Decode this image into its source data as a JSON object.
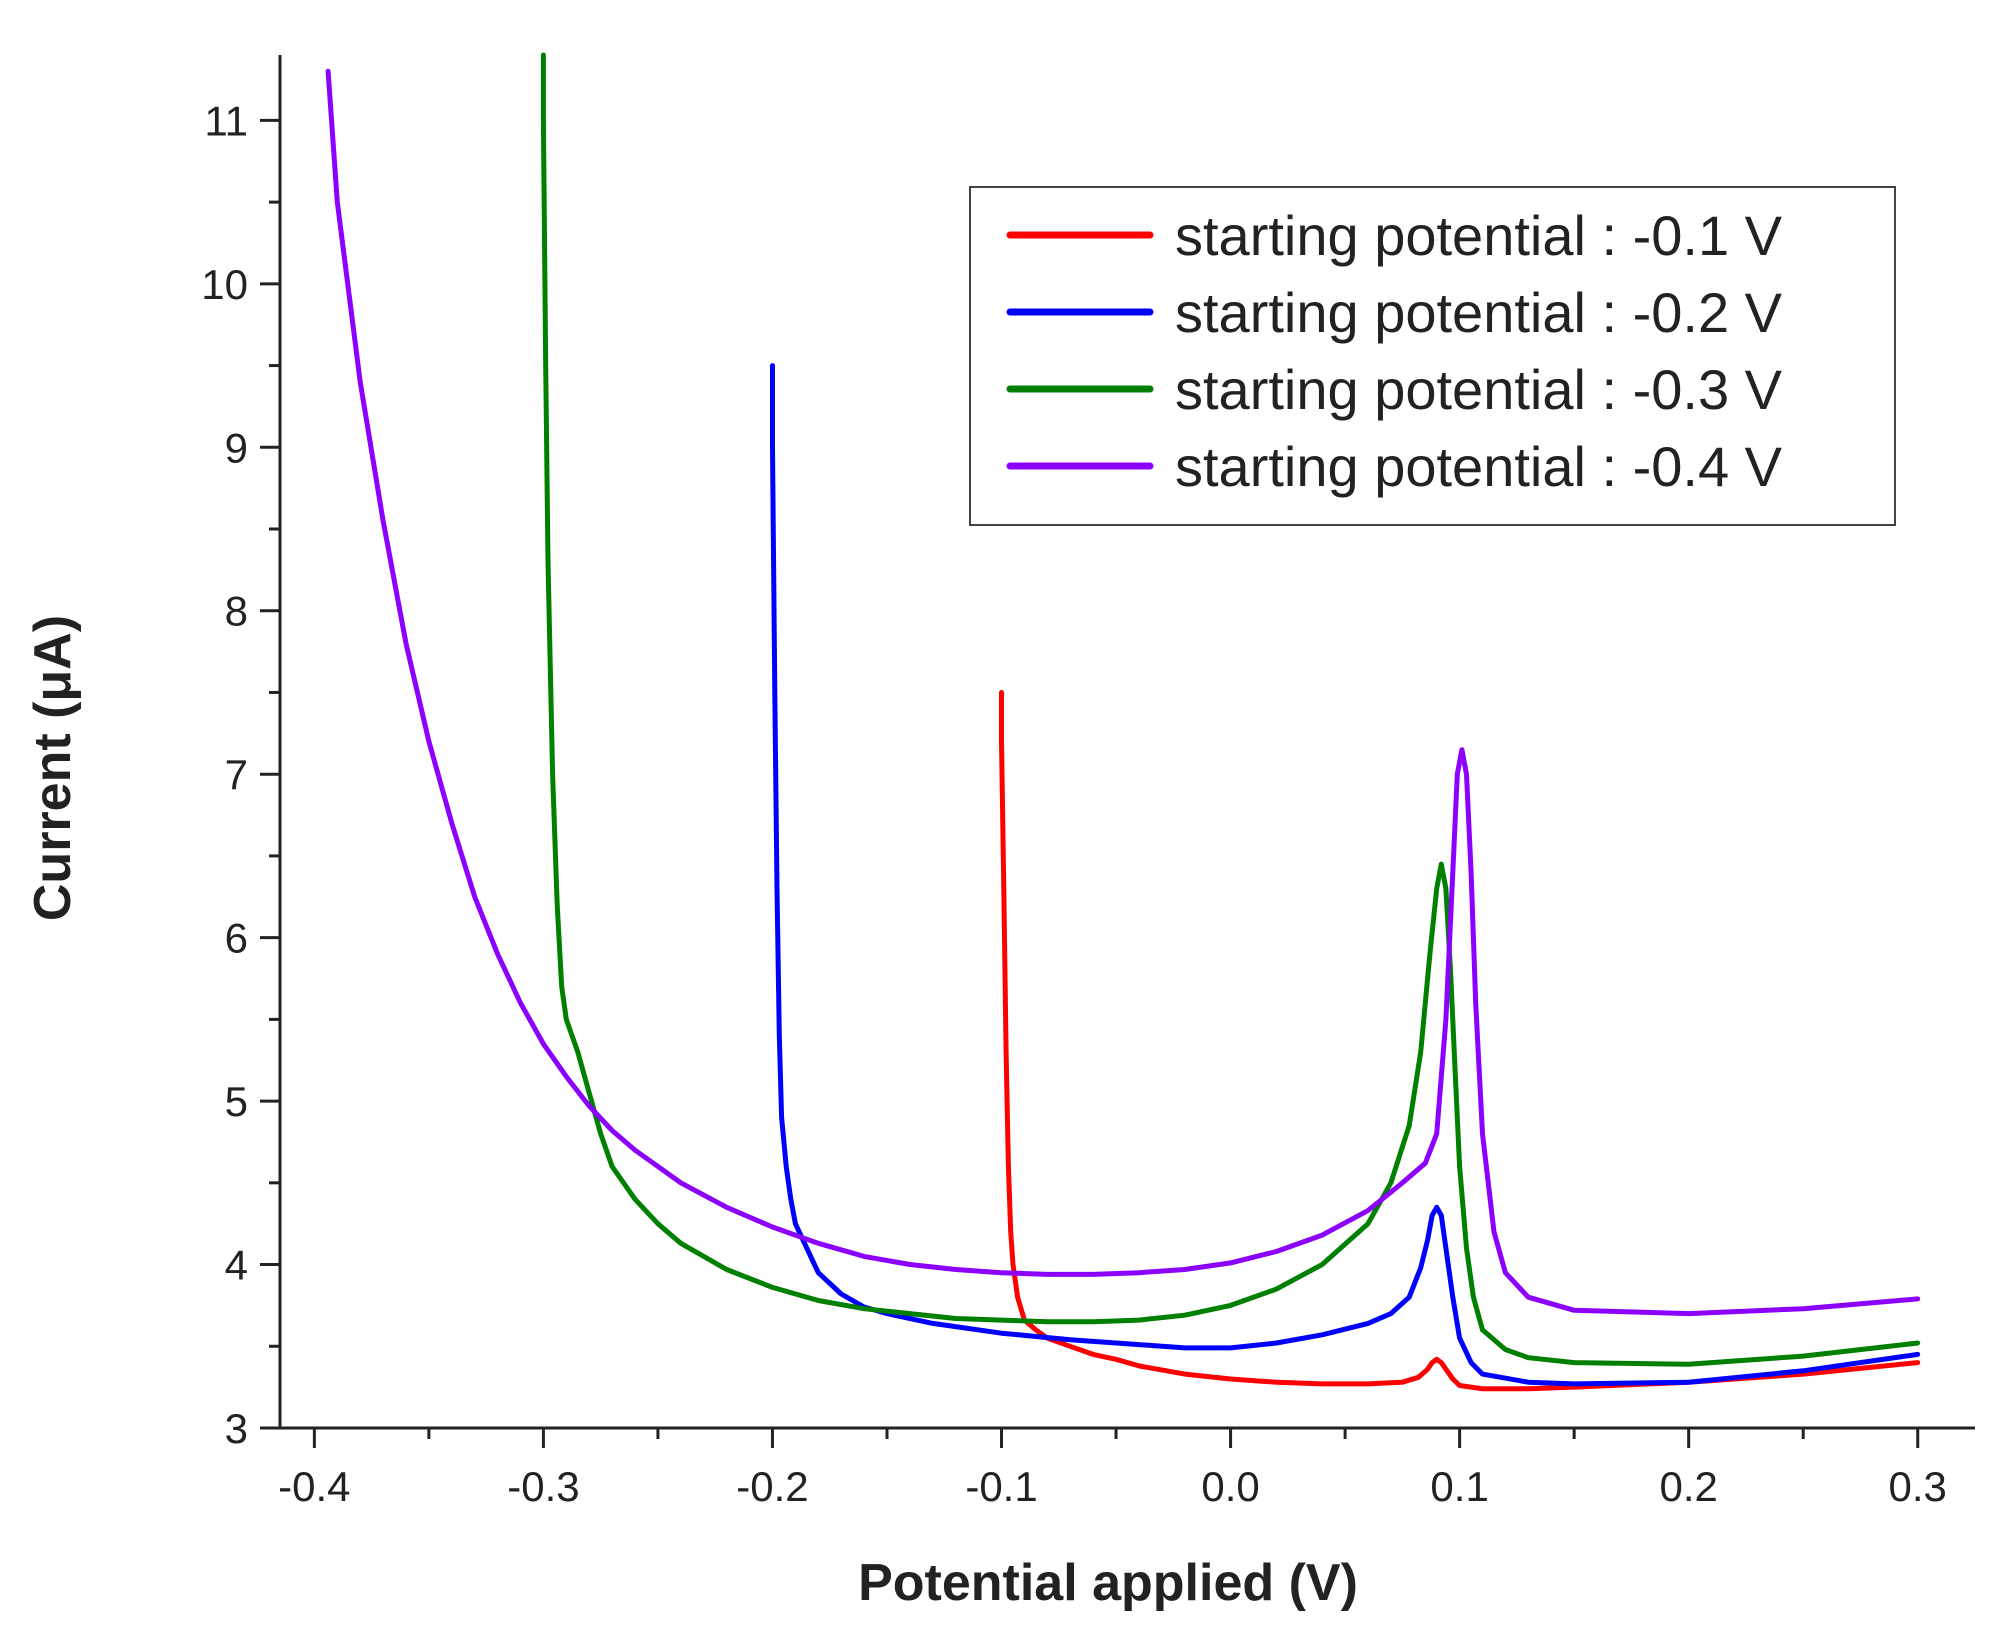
{
  "chart_data": {
    "type": "line",
    "title": "",
    "xlabel": "Potential applied (V)",
    "ylabel": "Current (μA)",
    "xlim": [
      -0.415,
      0.325
    ],
    "ylim": [
      3.0,
      11.4
    ],
    "xticks": [
      -0.4,
      -0.3,
      -0.2,
      -0.1,
      0.0,
      0.1,
      0.2,
      0.3
    ],
    "xtick_labels": [
      "-0.4",
      "-0.3",
      "-0.2",
      "-0.1",
      "0.0",
      "0.1",
      "0.2",
      "0.3"
    ],
    "yticks": [
      3,
      4,
      5,
      6,
      7,
      8,
      9,
      10,
      11
    ],
    "ytick_labels": [
      "3",
      "4",
      "5",
      "6",
      "7",
      "8",
      "9",
      "10",
      "11"
    ],
    "legend_position": "top-right",
    "series": [
      {
        "name": "starting potential : -0.1 V",
        "color": "#ff0000",
        "x": [
          -0.1,
          -0.1,
          -0.099,
          -0.098,
          -0.097,
          -0.096,
          -0.095,
          -0.093,
          -0.09,
          -0.085,
          -0.08,
          -0.07,
          -0.06,
          -0.05,
          -0.04,
          -0.02,
          0.0,
          0.02,
          0.04,
          0.06,
          0.075,
          0.082,
          0.086,
          0.088,
          0.09,
          0.092,
          0.094,
          0.097,
          0.1,
          0.105,
          0.11,
          0.13,
          0.15,
          0.2,
          0.25,
          0.3
        ],
        "y": [
          7.5,
          7.2,
          6.3,
          5.3,
          4.6,
          4.2,
          4.0,
          3.8,
          3.66,
          3.6,
          3.55,
          3.5,
          3.45,
          3.42,
          3.38,
          3.33,
          3.3,
          3.28,
          3.27,
          3.27,
          3.28,
          3.31,
          3.36,
          3.4,
          3.42,
          3.4,
          3.36,
          3.3,
          3.26,
          3.25,
          3.24,
          3.24,
          3.25,
          3.28,
          3.33,
          3.4
        ]
      },
      {
        "name": "starting potential : -0.2 V",
        "color": "#0000ff",
        "x": [
          -0.2,
          -0.2,
          -0.199,
          -0.198,
          -0.197,
          -0.196,
          -0.194,
          -0.192,
          -0.19,
          -0.185,
          -0.18,
          -0.17,
          -0.16,
          -0.15,
          -0.13,
          -0.1,
          -0.07,
          -0.05,
          -0.02,
          0.0,
          0.02,
          0.04,
          0.06,
          0.07,
          0.078,
          0.083,
          0.086,
          0.088,
          0.09,
          0.092,
          0.094,
          0.097,
          0.1,
          0.105,
          0.11,
          0.13,
          0.15,
          0.2,
          0.25,
          0.3
        ],
        "y": [
          9.5,
          9.0,
          7.5,
          6.3,
          5.4,
          4.9,
          4.6,
          4.4,
          4.25,
          4.1,
          3.95,
          3.82,
          3.74,
          3.7,
          3.64,
          3.58,
          3.54,
          3.52,
          3.49,
          3.49,
          3.52,
          3.57,
          3.64,
          3.7,
          3.8,
          3.98,
          4.15,
          4.3,
          4.35,
          4.3,
          4.1,
          3.8,
          3.55,
          3.4,
          3.33,
          3.28,
          3.27,
          3.28,
          3.35,
          3.45
        ]
      },
      {
        "name": "starting potential : -0.3 V",
        "color": "#008000",
        "x": [
          -0.3,
          -0.3,
          -0.299,
          -0.298,
          -0.296,
          -0.294,
          -0.292,
          -0.29,
          -0.285,
          -0.28,
          -0.275,
          -0.27,
          -0.26,
          -0.25,
          -0.24,
          -0.22,
          -0.2,
          -0.18,
          -0.16,
          -0.14,
          -0.12,
          -0.1,
          -0.08,
          -0.06,
          -0.04,
          -0.02,
          0.0,
          0.02,
          0.04,
          0.06,
          0.07,
          0.078,
          0.083,
          0.087,
          0.09,
          0.092,
          0.094,
          0.096,
          0.098,
          0.1,
          0.103,
          0.106,
          0.11,
          0.12,
          0.13,
          0.15,
          0.2,
          0.25,
          0.3
        ],
        "y": [
          11.4,
          11.0,
          9.5,
          8.3,
          7.0,
          6.2,
          5.7,
          5.5,
          5.3,
          5.05,
          4.8,
          4.6,
          4.4,
          4.25,
          4.13,
          3.97,
          3.86,
          3.78,
          3.73,
          3.7,
          3.67,
          3.66,
          3.65,
          3.65,
          3.66,
          3.69,
          3.75,
          3.85,
          4.0,
          4.25,
          4.5,
          4.85,
          5.3,
          5.9,
          6.3,
          6.45,
          6.3,
          5.8,
          5.2,
          4.6,
          4.1,
          3.8,
          3.6,
          3.48,
          3.43,
          3.4,
          3.39,
          3.44,
          3.52
        ]
      },
      {
        "name": "starting potential : -0.4 V",
        "color": "#8b00ff",
        "x": [
          -0.394,
          -0.39,
          -0.38,
          -0.37,
          -0.36,
          -0.35,
          -0.34,
          -0.33,
          -0.32,
          -0.31,
          -0.3,
          -0.29,
          -0.28,
          -0.27,
          -0.26,
          -0.24,
          -0.22,
          -0.2,
          -0.18,
          -0.16,
          -0.14,
          -0.12,
          -0.1,
          -0.08,
          -0.06,
          -0.04,
          -0.02,
          0.0,
          0.02,
          0.04,
          0.06,
          0.075,
          0.085,
          0.09,
          0.094,
          0.097,
          0.099,
          0.101,
          0.103,
          0.105,
          0.107,
          0.11,
          0.115,
          0.12,
          0.13,
          0.15,
          0.2,
          0.25,
          0.3
        ],
        "y": [
          11.3,
          10.5,
          9.4,
          8.55,
          7.8,
          7.2,
          6.7,
          6.25,
          5.9,
          5.6,
          5.35,
          5.15,
          4.97,
          4.82,
          4.7,
          4.5,
          4.35,
          4.23,
          4.13,
          4.05,
          4.0,
          3.97,
          3.95,
          3.94,
          3.94,
          3.95,
          3.97,
          4.01,
          4.08,
          4.18,
          4.33,
          4.5,
          4.62,
          4.8,
          5.5,
          6.4,
          7.0,
          7.15,
          7.0,
          6.4,
          5.6,
          4.8,
          4.2,
          3.95,
          3.8,
          3.72,
          3.7,
          3.73,
          3.79
        ]
      }
    ]
  }
}
